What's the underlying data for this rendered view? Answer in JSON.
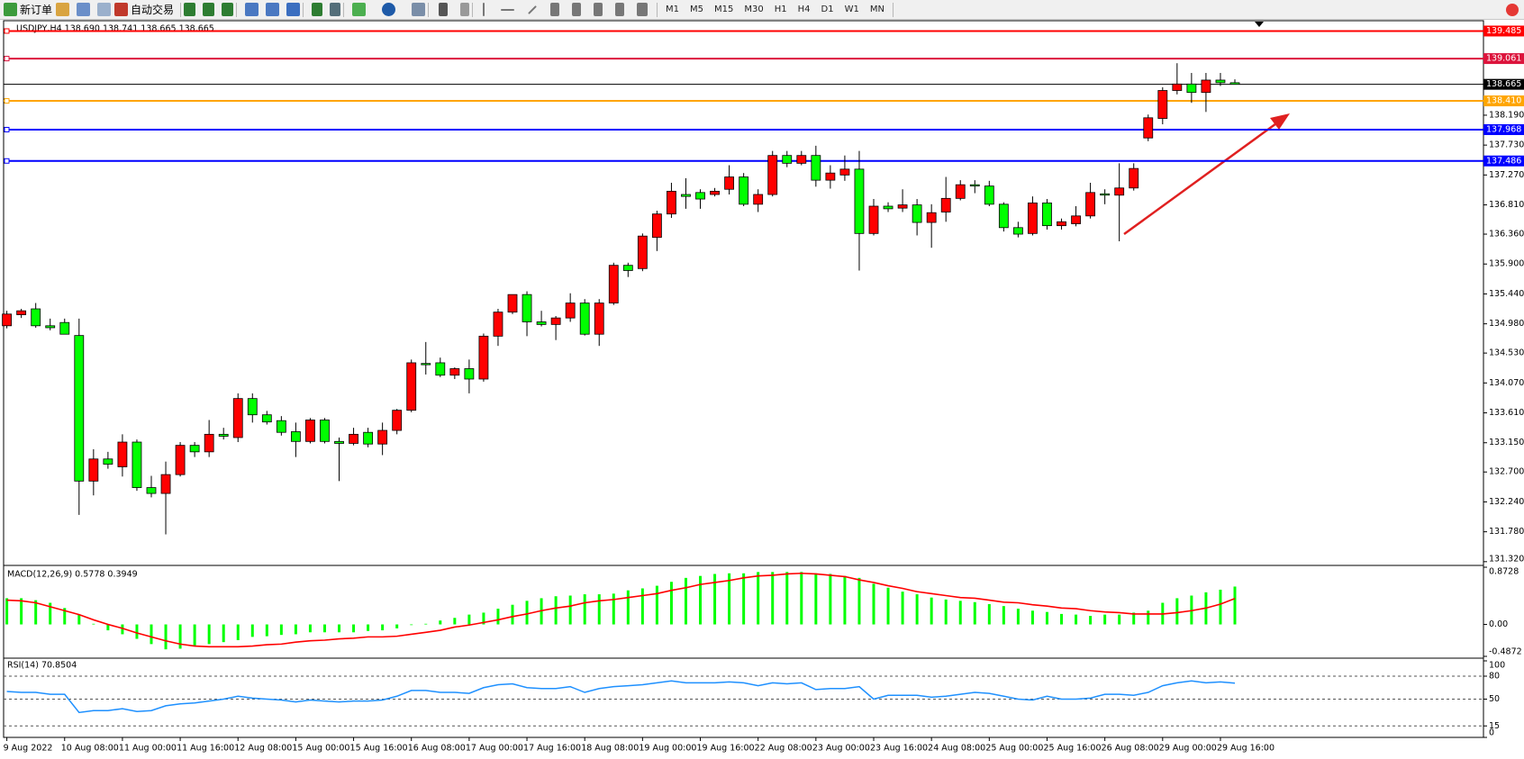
{
  "toolbar": {
    "new_order": "新订单",
    "auto_trading": "自动交易",
    "timeframes": [
      "M1",
      "M5",
      "M15",
      "M30",
      "H1",
      "H4",
      "D1",
      "W1",
      "MN"
    ]
  },
  "chart_data": [
    {
      "type": "candlestick",
      "title": "USDJPY,H4  138.690 138.741 138.665 138.665",
      "up_color": "#ff0000",
      "down_color": "#00ff00",
      "categories": [
        "9 Aug 2022",
        null,
        null,
        null,
        "10 Aug 08:00",
        null,
        null,
        null,
        "11 Aug 00:00",
        null,
        null,
        null,
        "11 Aug 16:00",
        null,
        null,
        null,
        "12 Aug 08:00",
        null,
        null,
        null,
        "15 Aug 00:00",
        null,
        null,
        null,
        "15 Aug 16:00",
        null,
        null,
        null,
        "16 Aug 08:00",
        null,
        null,
        null,
        "17 Aug 00:00",
        null,
        null,
        null,
        "17 Aug 16:00",
        null,
        null,
        null,
        "18 Aug 08:00",
        null,
        null,
        null,
        "19 Aug 00:00",
        null,
        null,
        null,
        "19 Aug 16:00",
        null,
        null,
        null,
        "22 Aug 08:00",
        null,
        null,
        null,
        "23 Aug 00:00",
        null,
        null,
        null,
        "23 Aug 16:00",
        null,
        null,
        null,
        "24 Aug 08:00",
        null,
        null,
        null,
        "25 Aug 00:00",
        null,
        null,
        null,
        "25 Aug 16:00",
        null,
        null,
        null,
        "26 Aug 08:00",
        null,
        null,
        null,
        "29 Aug 00:00",
        null,
        null,
        null,
        "29 Aug 16:00",
        null
      ],
      "open": [
        134.95,
        135.12,
        135.21,
        134.95,
        135.0,
        134.8,
        132.56,
        132.9,
        132.78,
        133.16,
        132.46,
        132.37,
        132.66,
        133.11,
        133.01,
        133.28,
        133.23,
        133.83,
        133.58,
        133.49,
        133.32,
        133.17,
        133.5,
        133.17,
        133.14,
        133.31,
        133.13,
        133.34,
        133.65,
        134.37,
        134.38,
        134.19,
        134.29,
        134.13,
        134.79,
        135.16,
        135.43,
        135.01,
        134.97,
        135.07,
        135.3,
        134.82,
        135.3,
        135.88,
        135.83,
        136.31,
        136.67,
        136.97,
        137.0,
        136.97,
        137.05,
        137.24,
        136.82,
        136.97,
        137.57,
        137.45,
        137.57,
        137.19,
        137.27,
        137.36,
        136.37,
        136.79,
        136.76,
        136.81,
        136.54,
        136.7,
        136.91,
        137.12,
        137.1,
        136.82,
        136.46,
        136.37,
        136.84,
        136.49,
        136.52,
        136.64,
        136.98,
        136.96,
        137.07,
        137.84,
        138.14,
        138.57,
        138.67,
        138.54,
        138.73,
        138.69
      ],
      "high": [
        135.18,
        135.21,
        135.3,
        135.06,
        135.06,
        135.06,
        133.05,
        133.01,
        133.28,
        133.2,
        132.64,
        132.86,
        133.16,
        133.16,
        133.5,
        133.38,
        133.91,
        133.91,
        133.64,
        133.56,
        133.46,
        133.53,
        133.53,
        133.23,
        133.38,
        133.38,
        133.46,
        133.67,
        134.43,
        134.7,
        134.46,
        134.31,
        134.43,
        134.83,
        135.21,
        135.43,
        135.48,
        135.18,
        135.1,
        135.45,
        135.36,
        135.36,
        135.92,
        135.92,
        136.37,
        136.72,
        137.15,
        137.22,
        137.05,
        137.07,
        137.42,
        137.3,
        137.05,
        137.64,
        137.64,
        137.64,
        137.72,
        137.42,
        137.57,
        137.64,
        136.9,
        136.85,
        137.05,
        136.9,
        136.82,
        137.24,
        137.19,
        137.19,
        137.18,
        136.85,
        136.55,
        136.94,
        136.9,
        136.6,
        136.79,
        137.15,
        137.05,
        137.45,
        137.45,
        138.2,
        138.62,
        138.99,
        138.84,
        138.84,
        138.84,
        138.741
      ],
      "low": [
        134.91,
        135.07,
        134.92,
        134.88,
        134.82,
        132.04,
        132.34,
        132.75,
        132.63,
        132.41,
        132.31,
        131.74,
        132.63,
        132.93,
        132.93,
        133.2,
        133.16,
        133.46,
        133.43,
        133.26,
        132.93,
        133.14,
        133.14,
        132.56,
        133.11,
        133.08,
        132.96,
        133.28,
        133.62,
        134.2,
        134.16,
        134.13,
        133.91,
        134.09,
        134.64,
        135.13,
        134.79,
        134.94,
        134.73,
        135.01,
        134.8,
        134.64,
        135.27,
        135.7,
        135.79,
        136.1,
        136.61,
        136.75,
        136.75,
        136.94,
        136.97,
        136.79,
        136.7,
        136.94,
        137.39,
        137.42,
        137.09,
        137.06,
        137.18,
        135.8,
        136.34,
        136.7,
        136.7,
        136.34,
        136.15,
        136.55,
        136.88,
        136.99,
        136.79,
        136.4,
        136.31,
        136.34,
        136.43,
        136.43,
        136.48,
        136.6,
        136.82,
        136.25,
        137.03,
        137.79,
        138.05,
        138.51,
        138.38,
        138.24,
        138.64,
        138.665
      ],
      "close": [
        135.13,
        135.18,
        134.95,
        134.92,
        134.82,
        132.56,
        132.9,
        132.82,
        133.16,
        132.46,
        132.37,
        132.66,
        133.11,
        133.01,
        133.28,
        133.25,
        133.83,
        133.58,
        133.47,
        133.31,
        133.17,
        133.5,
        133.17,
        133.14,
        133.28,
        133.13,
        133.34,
        133.65,
        134.38,
        134.35,
        134.19,
        134.29,
        134.13,
        134.79,
        135.16,
        135.43,
        135.01,
        134.97,
        135.07,
        135.3,
        134.82,
        135.3,
        135.88,
        135.8,
        136.33,
        136.67,
        137.02,
        136.94,
        136.9,
        137.02,
        137.24,
        136.82,
        136.97,
        137.57,
        137.45,
        137.57,
        137.19,
        137.3,
        137.36,
        136.37,
        136.79,
        136.75,
        136.81,
        136.54,
        136.69,
        136.91,
        137.12,
        137.1,
        136.82,
        136.46,
        136.36,
        136.84,
        136.49,
        136.55,
        136.64,
        137.0,
        136.96,
        137.07,
        137.37,
        138.15,
        138.57,
        138.67,
        138.54,
        138.73,
        138.69,
        138.665
      ],
      "ylim": [
        131.29,
        139.63
      ],
      "yticks": [
        {
          "value": 131.32,
          "label": "131.320"
        },
        {
          "value": 131.78,
          "label": "131.780"
        },
        {
          "value": 132.24,
          "label": "132.240"
        },
        {
          "value": 132.7,
          "label": "132.700"
        },
        {
          "value": 133.15,
          "label": "133.150"
        },
        {
          "value": 133.61,
          "label": "133.610"
        },
        {
          "value": 134.07,
          "label": "134.070"
        },
        {
          "value": 134.53,
          "label": "134.530"
        },
        {
          "value": 134.98,
          "label": "134.980"
        },
        {
          "value": 135.44,
          "label": "135.440"
        },
        {
          "value": 135.9,
          "label": "135.900"
        },
        {
          "value": 136.36,
          "label": "136.360"
        },
        {
          "value": 136.81,
          "label": "136.810"
        },
        {
          "value": 137.27,
          "label": "137.270"
        },
        {
          "value": 137.73,
          "label": "137.730"
        },
        {
          "value": 138.19,
          "label": "138.190"
        }
      ],
      "levels": [
        {
          "value": 139.485,
          "color": "#ff0000"
        },
        {
          "value": 139.061,
          "color": "#dc143c"
        },
        {
          "value": 138.41,
          "label": "138.410",
          "color": "#ffa500"
        },
        {
          "value": 137.968,
          "color": "#0000ff"
        },
        {
          "value": 137.486,
          "color": "#0000ff"
        }
      ],
      "current_price": {
        "value": 138.665,
        "color": "#000000"
      }
    },
    {
      "type": "macd",
      "title": "MACD(12,26,9) 0.5778 0.3949",
      "series": [
        {
          "style": "histogram",
          "color": "#00ff00",
          "values": [
            0.4,
            0.4,
            0.37,
            0.33,
            0.25,
            0.15,
            0.01,
            -0.09,
            -0.15,
            -0.22,
            -0.3,
            -0.38,
            -0.37,
            -0.33,
            -0.3,
            -0.27,
            -0.24,
            -0.19,
            -0.18,
            -0.16,
            -0.15,
            -0.12,
            -0.12,
            -0.12,
            -0.12,
            -0.1,
            -0.09,
            -0.06,
            -0.01,
            0.01,
            0.06,
            0.1,
            0.15,
            0.18,
            0.24,
            0.3,
            0.36,
            0.4,
            0.43,
            0.44,
            0.46,
            0.46,
            0.47,
            0.52,
            0.55,
            0.59,
            0.65,
            0.71,
            0.74,
            0.77,
            0.78,
            0.78,
            0.8,
            0.8,
            0.8,
            0.8,
            0.78,
            0.77,
            0.74,
            0.71,
            0.62,
            0.56,
            0.5,
            0.46,
            0.41,
            0.38,
            0.36,
            0.34,
            0.31,
            0.28,
            0.24,
            0.21,
            0.19,
            0.16,
            0.15,
            0.13,
            0.15,
            0.15,
            0.18,
            0.21,
            0.33,
            0.4,
            0.44,
            0.49,
            0.53,
            0.5778
          ]
        },
        {
          "style": "line",
          "color": "#ff0000",
          "values": [
            0.37,
            0.36,
            0.33,
            0.27,
            0.21,
            0.15,
            0.07,
            0,
            -0.06,
            -0.13,
            -0.19,
            -0.25,
            -0.3,
            -0.33,
            -0.34,
            -0.34,
            -0.34,
            -0.33,
            -0.31,
            -0.3,
            -0.27,
            -0.25,
            -0.24,
            -0.22,
            -0.21,
            -0.19,
            -0.19,
            -0.18,
            -0.15,
            -0.12,
            -0.09,
            -0.04,
            -0.01,
            0.03,
            0.07,
            0.12,
            0.16,
            0.21,
            0.25,
            0.28,
            0.33,
            0.36,
            0.38,
            0.41,
            0.44,
            0.47,
            0.52,
            0.56,
            0.61,
            0.64,
            0.67,
            0.71,
            0.74,
            0.75,
            0.77,
            0.78,
            0.77,
            0.75,
            0.73,
            0.68,
            0.64,
            0.59,
            0.55,
            0.5,
            0.47,
            0.44,
            0.41,
            0.4,
            0.37,
            0.34,
            0.33,
            0.3,
            0.28,
            0.25,
            0.24,
            0.21,
            0.19,
            0.18,
            0.16,
            0.16,
            0.16,
            0.18,
            0.21,
            0.25,
            0.31,
            0.3949
          ]
        }
      ],
      "ylim": [
        -0.4872,
        0.8728
      ],
      "yticks": [
        0.8728,
        {
          "value": 0,
          "label": "0.00"
        },
        -0.4872
      ]
    },
    {
      "type": "rsi",
      "title": "RSI(14) 70.8504",
      "color": "#1e90ff",
      "values": [
        60,
        58.8,
        58.8,
        56.3,
        56.3,
        32.5,
        35,
        35,
        37.5,
        33.8,
        35,
        41.3,
        43.8,
        45,
        47.5,
        50,
        53.8,
        51.3,
        50,
        48.8,
        46.3,
        48.8,
        47.5,
        46.3,
        47.5,
        47.5,
        48.8,
        53.8,
        61.3,
        61.3,
        58.8,
        58.8,
        57.5,
        65,
        68.8,
        70,
        65,
        63.8,
        63.8,
        66.3,
        58.8,
        63.8,
        66.3,
        67.5,
        68.8,
        71.3,
        73.8,
        71.3,
        71.3,
        71.3,
        72.5,
        71.3,
        67.5,
        71.3,
        70,
        71.3,
        62.5,
        63.8,
        63.8,
        66.3,
        50,
        55,
        55,
        55,
        52.5,
        53.8,
        56.3,
        58.8,
        57.5,
        53.8,
        50,
        48.8,
        53.8,
        50,
        50,
        51.3,
        56.3,
        56.3,
        55,
        58.8,
        67.5,
        71.3,
        73.8,
        71.3,
        72.5,
        70.8504
      ],
      "ylim": [
        0,
        100
      ],
      "yticks": [
        100,
        80,
        50,
        15,
        0
      ],
      "dashed_levels": [
        80,
        50,
        15
      ]
    }
  ]
}
